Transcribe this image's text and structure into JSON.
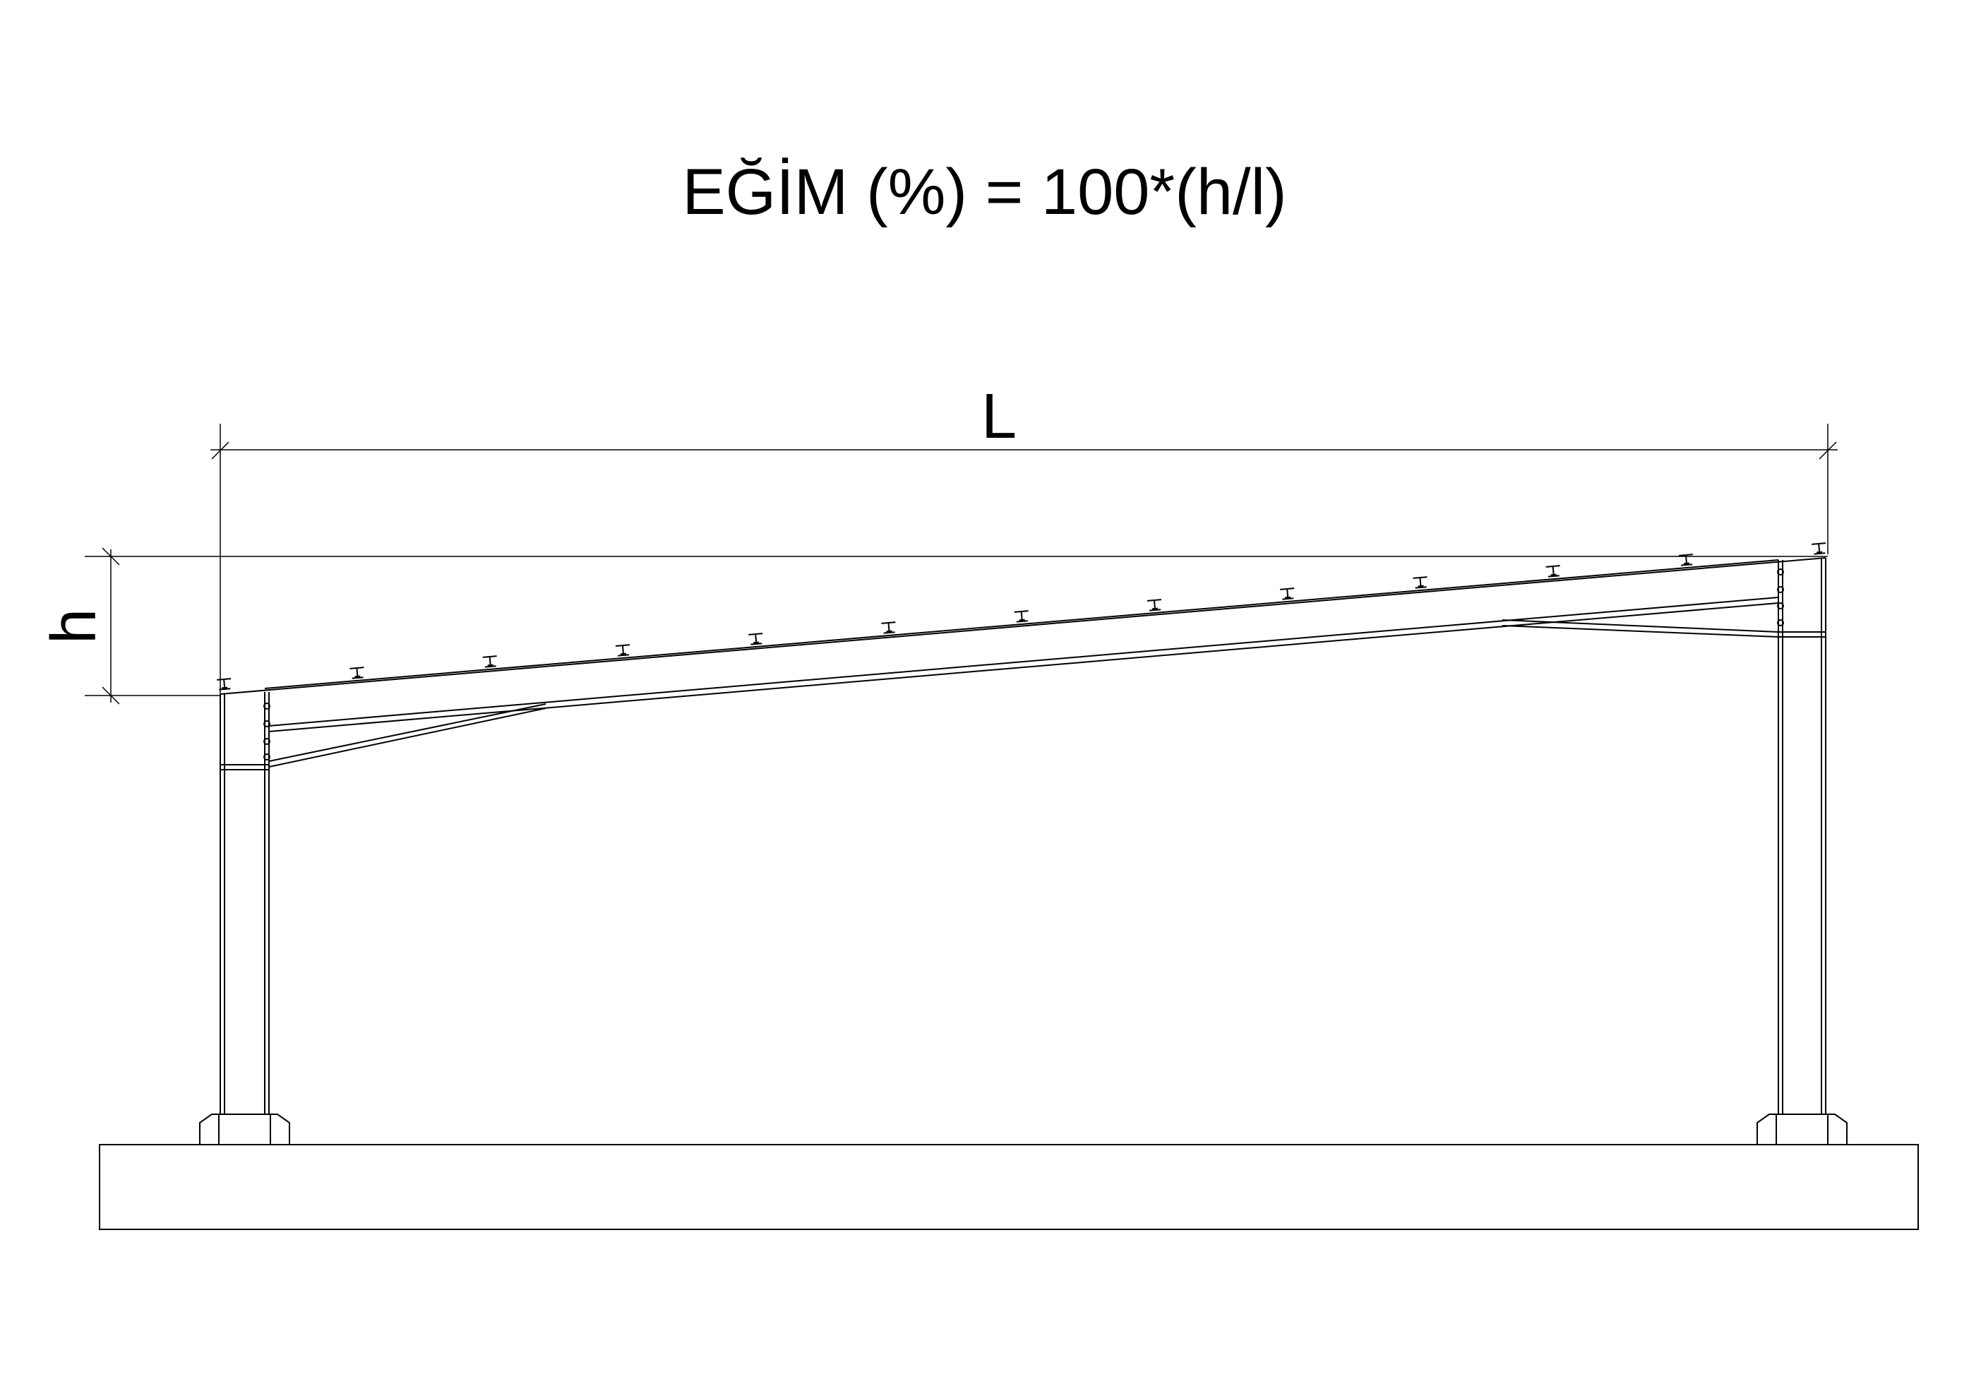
{
  "title": "EĞİM (%) = 100*(h/l)",
  "dimensions": {
    "span_label": "L",
    "rise_label": "h"
  },
  "colors": {
    "line": "#000000",
    "background": "#ffffff"
  },
  "purlin_count": 13
}
